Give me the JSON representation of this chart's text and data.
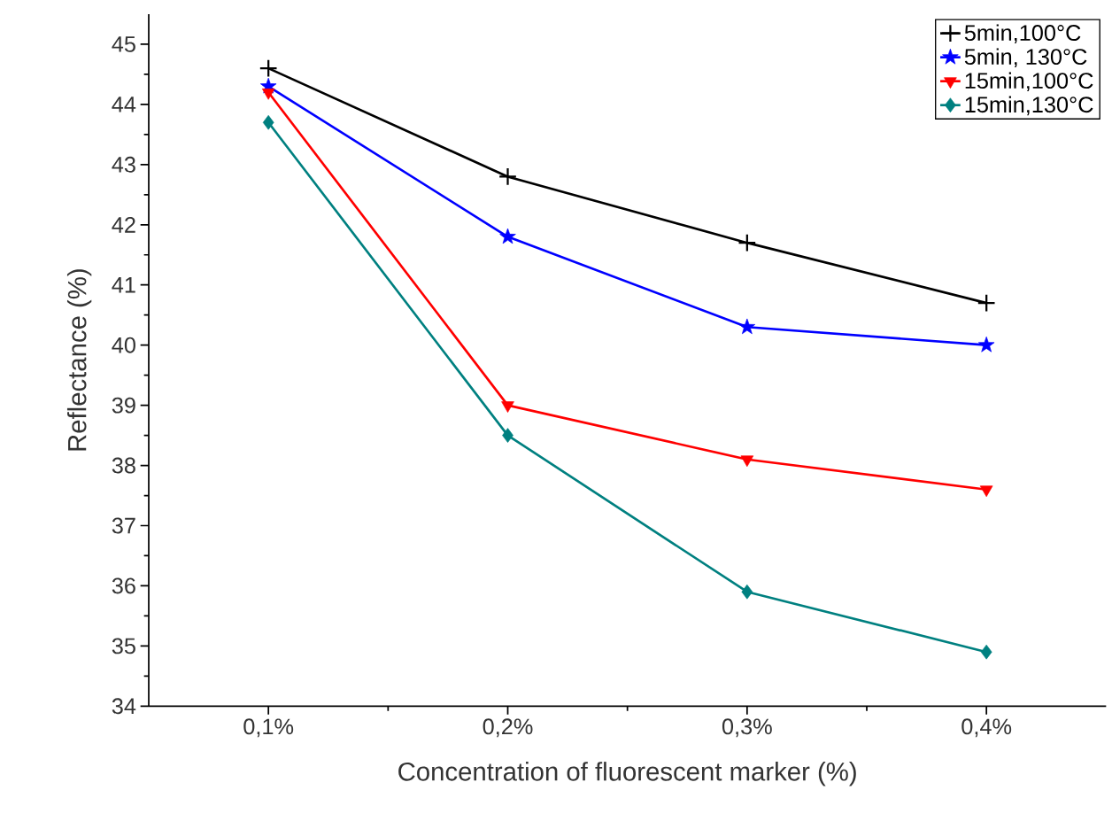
{
  "chart_data": {
    "type": "line",
    "xlabel": "Concentration of fluorescent marker (%)",
    "ylabel": "Reflectance (%)",
    "categories": [
      "0,1%",
      "0,2%",
      "0,3%",
      "0,4%"
    ],
    "ylim": [
      34,
      45.5
    ],
    "yticks": [
      34,
      35,
      36,
      37,
      38,
      39,
      40,
      41,
      42,
      43,
      44,
      45
    ],
    "grid": false,
    "legend": "top right",
    "line_style": "solid",
    "series": [
      {
        "name": "5min,100°C",
        "color": "#000000",
        "marker": "cross",
        "values": [
          44.6,
          42.8,
          41.7,
          40.7
        ]
      },
      {
        "name": "5min, 130°C",
        "color": "#0000ff",
        "marker": "star",
        "values": [
          44.3,
          41.8,
          40.3,
          40.0
        ]
      },
      {
        "name": "15min,100°C",
        "color": "#ff0000",
        "marker": "triangle",
        "values": [
          44.2,
          39.0,
          38.1,
          37.6
        ]
      },
      {
        "name": "15min,130°C",
        "color": "#008080",
        "marker": "diamond",
        "values": [
          43.7,
          38.5,
          35.9,
          34.9
        ]
      }
    ]
  }
}
